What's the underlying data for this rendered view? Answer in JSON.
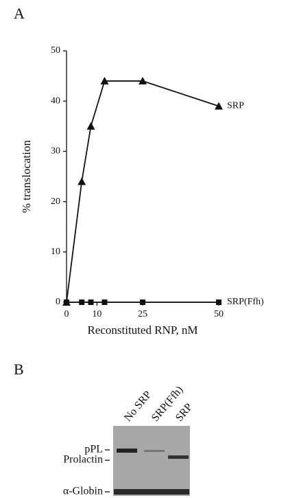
{
  "panels": {
    "a": "A",
    "b": "B"
  },
  "chart_data": {
    "type": "line",
    "x": [
      0,
      5,
      8,
      12.5,
      25,
      50
    ],
    "series": [
      {
        "name": "SRP",
        "color": "#111111",
        "marker": "triangle",
        "values": [
          0,
          24,
          35,
          44,
          44,
          39
        ]
      },
      {
        "name": "SRP(Ffh)",
        "color": "#111111",
        "marker": "square",
        "values": [
          0,
          0,
          0,
          0,
          0,
          0
        ]
      }
    ],
    "xlabel": "Reconstituted RNP, nM",
    "ylabel": "% translocation",
    "xlim": [
      0,
      50
    ],
    "ylim": [
      0,
      50
    ],
    "xticks": [
      0,
      10,
      25,
      50
    ],
    "yticks": [
      0,
      10,
      20,
      30,
      40,
      50
    ]
  },
  "gel": {
    "lanes": [
      "No SRP",
      "SRP(Ffh)",
      "SRP"
    ],
    "bands": [
      "pPL",
      "Prolactin",
      "α-Globin"
    ]
  }
}
